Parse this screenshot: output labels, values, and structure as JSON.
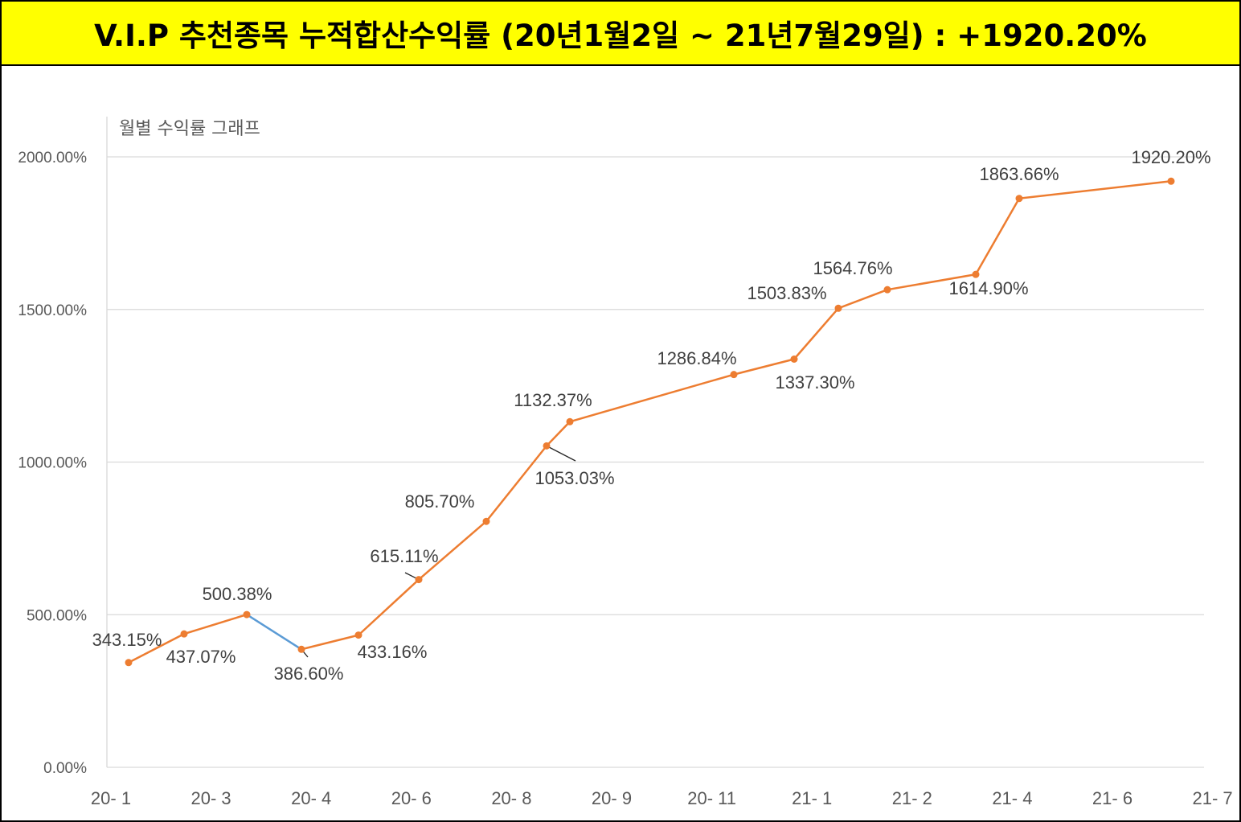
{
  "banner": {
    "title": "V.I.P 추천종목 누적합산수익률 (20년1월2일 ~ 21년7월29일) : +1920.20%"
  },
  "colors": {
    "banner_bg": "#ffff00",
    "line": "#ed7d31",
    "down_segment": "#5b9bd5",
    "grid": "#d9d9d9"
  },
  "chart_data": {
    "type": "line",
    "title": "월별 수익률 그래프",
    "xlabel": "",
    "ylabel": "",
    "ylim": [
      0,
      2000
    ],
    "yticks": [
      0,
      500,
      1000,
      1500,
      2000
    ],
    "ytick_labels": [
      "0.00%",
      "500.00%",
      "1000.00%",
      "1500.00%",
      "2000.00%"
    ],
    "x_tick_labels": [
      "20- 1",
      "20- 3",
      "20- 4",
      "20- 6",
      "20- 8",
      "20- 9",
      "20- 11",
      "21- 1",
      "21- 2",
      "21- 4",
      "21- 6",
      "21- 7"
    ],
    "grid": true,
    "legend": "none",
    "values": [
      343.15,
      437.07,
      500.38,
      386.6,
      433.16,
      615.11,
      805.7,
      1053.03,
      1132.37,
      1286.84,
      1337.3,
      1503.83,
      1564.76,
      1614.9,
      1863.66,
      1920.2
    ],
    "labels": [
      "343.15%",
      "437.07%",
      "500.38%",
      "386.60%",
      "433.16%",
      "615.11%",
      "805.70%",
      "1053.03%",
      "1132.37%",
      "1286.84%",
      "1337.30%",
      "1503.83%",
      "1564.76%",
      "1614.90%",
      "1863.66%",
      "1920.20%"
    ]
  }
}
